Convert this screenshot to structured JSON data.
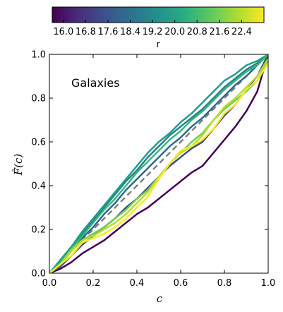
{
  "chart_data": {
    "type": "line",
    "title": "",
    "xlabel": "c",
    "ylabel": "F̂(c)",
    "xlim": [
      0.0,
      1.0
    ],
    "ylim": [
      0.0,
      1.0
    ],
    "xticks": [
      "0.0",
      "0.2",
      "0.4",
      "0.6",
      "0.8",
      "1.0"
    ],
    "yticks": [
      "0.0",
      "0.2",
      "0.4",
      "0.6",
      "0.8",
      "1.0"
    ],
    "grid": false,
    "annotation": "Galaxies",
    "colorbar": {
      "label": "r",
      "position": "top",
      "colormap": "viridis",
      "range": [
        15.6,
        23.2
      ],
      "ticks": [
        "16.0",
        "16.8",
        "17.6",
        "18.4",
        "19.2",
        "20.0",
        "20.8",
        "21.6",
        "22.4"
      ]
    },
    "reference_line": {
      "style": "dashed",
      "color": "#808080",
      "x": [
        0,
        1
      ],
      "y": [
        0,
        1
      ]
    },
    "series": [
      {
        "color": "#440154",
        "x": [
          0,
          0.05,
          0.1,
          0.15,
          0.2,
          0.25,
          0.3,
          0.35,
          0.4,
          0.45,
          0.5,
          0.55,
          0.6,
          0.65,
          0.7,
          0.75,
          0.8,
          0.85,
          0.9,
          0.95,
          1.0
        ],
        "y": [
          0,
          0.02,
          0.05,
          0.09,
          0.12,
          0.15,
          0.19,
          0.23,
          0.27,
          0.3,
          0.34,
          0.38,
          0.42,
          0.46,
          0.49,
          0.55,
          0.61,
          0.67,
          0.74,
          0.83,
          1.0
        ]
      },
      {
        "color": "#3e4a89",
        "x": [
          0,
          0.05,
          0.1,
          0.15,
          0.2,
          0.25,
          0.3,
          0.35,
          0.4,
          0.45,
          0.5,
          0.55,
          0.6,
          0.65,
          0.7,
          0.75,
          0.8,
          0.85,
          0.9,
          0.95,
          1.0
        ],
        "y": [
          0,
          0.03,
          0.08,
          0.13,
          0.17,
          0.21,
          0.25,
          0.3,
          0.34,
          0.39,
          0.44,
          0.49,
          0.53,
          0.57,
          0.6,
          0.66,
          0.72,
          0.77,
          0.84,
          0.9,
          1.0
        ]
      },
      {
        "color": "#31688e",
        "x": [
          0,
          0.05,
          0.1,
          0.15,
          0.2,
          0.25,
          0.3,
          0.35,
          0.4,
          0.45,
          0.5,
          0.55,
          0.6,
          0.65,
          0.7,
          0.75,
          0.8,
          0.85,
          0.9,
          0.95,
          1.0
        ],
        "y": [
          0,
          0.04,
          0.1,
          0.16,
          0.21,
          0.27,
          0.32,
          0.38,
          0.43,
          0.48,
          0.53,
          0.58,
          0.62,
          0.67,
          0.71,
          0.76,
          0.81,
          0.86,
          0.9,
          0.95,
          1.0
        ]
      },
      {
        "color": "#26828e",
        "x": [
          0,
          0.05,
          0.1,
          0.15,
          0.2,
          0.25,
          0.3,
          0.35,
          0.4,
          0.45,
          0.5,
          0.55,
          0.6,
          0.65,
          0.7,
          0.75,
          0.8,
          0.85,
          0.9,
          0.95,
          1.0
        ],
        "y": [
          0,
          0.06,
          0.12,
          0.18,
          0.24,
          0.3,
          0.36,
          0.42,
          0.47,
          0.53,
          0.58,
          0.63,
          0.67,
          0.71,
          0.75,
          0.8,
          0.85,
          0.89,
          0.93,
          0.96,
          1.0
        ]
      },
      {
        "color": "#1f9e89",
        "x": [
          0,
          0.05,
          0.1,
          0.15,
          0.2,
          0.25,
          0.3,
          0.35,
          0.4,
          0.45,
          0.5,
          0.55,
          0.6,
          0.65,
          0.7,
          0.75,
          0.8,
          0.85,
          0.9,
          0.95,
          1.0
        ],
        "y": [
          0,
          0.06,
          0.12,
          0.19,
          0.25,
          0.31,
          0.37,
          0.43,
          0.49,
          0.55,
          0.6,
          0.64,
          0.69,
          0.73,
          0.78,
          0.83,
          0.88,
          0.91,
          0.95,
          0.97,
          1.0
        ]
      },
      {
        "color": "#35b779",
        "x": [
          0,
          0.05,
          0.1,
          0.15,
          0.2,
          0.25,
          0.3,
          0.35,
          0.4,
          0.45,
          0.5,
          0.55,
          0.6,
          0.65,
          0.7,
          0.75,
          0.8,
          0.85,
          0.9,
          0.95,
          1.0
        ],
        "y": [
          0,
          0.05,
          0.11,
          0.17,
          0.23,
          0.29,
          0.34,
          0.4,
          0.46,
          0.51,
          0.56,
          0.61,
          0.65,
          0.7,
          0.74,
          0.79,
          0.84,
          0.88,
          0.92,
          0.95,
          1.0
        ]
      },
      {
        "color": "#6ece58",
        "x": [
          0,
          0.05,
          0.1,
          0.15,
          0.2,
          0.25,
          0.3,
          0.35,
          0.4,
          0.45,
          0.5,
          0.55,
          0.6,
          0.65,
          0.7,
          0.75,
          0.8,
          0.85,
          0.9,
          0.95,
          1.0
        ],
        "y": [
          0,
          0.04,
          0.11,
          0.15,
          0.18,
          0.21,
          0.25,
          0.29,
          0.34,
          0.38,
          0.44,
          0.5,
          0.55,
          0.6,
          0.64,
          0.7,
          0.75,
          0.79,
          0.83,
          0.88,
          0.97
        ]
      },
      {
        "color": "#b5de2b",
        "x": [
          0,
          0.05,
          0.1,
          0.15,
          0.2,
          0.25,
          0.3,
          0.35,
          0.4,
          0.45,
          0.5,
          0.55,
          0.6,
          0.65,
          0.7,
          0.75,
          0.8,
          0.85,
          0.9,
          0.95,
          1.0
        ],
        "y": [
          0,
          0.04,
          0.1,
          0.15,
          0.17,
          0.2,
          0.23,
          0.27,
          0.32,
          0.37,
          0.44,
          0.5,
          0.55,
          0.58,
          0.63,
          0.7,
          0.76,
          0.8,
          0.85,
          0.9,
          0.98
        ]
      },
      {
        "color": "#fde725",
        "x": [
          0,
          0.05,
          0.1,
          0.15,
          0.2,
          0.25,
          0.3,
          0.35,
          0.4,
          0.45,
          0.5,
          0.55,
          0.6,
          0.65,
          0.7,
          0.75,
          0.8,
          0.85,
          0.9,
          0.95,
          1.0
        ],
        "y": [
          0,
          0.04,
          0.08,
          0.14,
          0.16,
          0.18,
          0.21,
          0.25,
          0.3,
          0.35,
          0.43,
          0.5,
          0.56,
          0.58,
          0.61,
          0.66,
          0.73,
          0.77,
          0.84,
          0.88,
          0.96
        ]
      }
    ]
  }
}
